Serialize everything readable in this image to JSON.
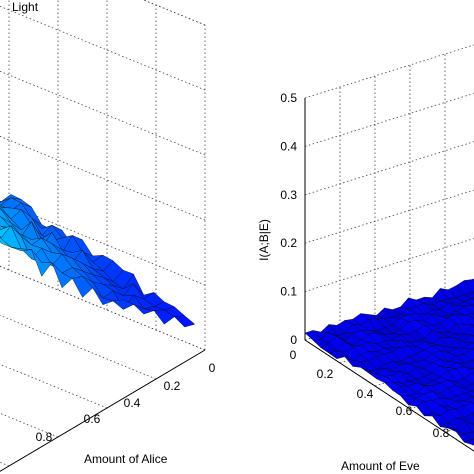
{
  "chart_data": [
    {
      "type": "surface",
      "title": "Light",
      "xlabel": "Amount of Alice",
      "x_ticks": [
        "0",
        "0.2",
        "0.4",
        "0.6",
        "0.8"
      ],
      "grid": true,
      "colormap": "jet",
      "surface": {
        "peak_at": [
          0,
          0
        ],
        "peak_value": 0.5,
        "falloff": "radial, decays toward x+y=1"
      }
    },
    {
      "type": "surface",
      "ylabel": "I(A;B|E)",
      "xlabel": "Amount of Eve",
      "z_ticks": [
        "0",
        "0.1",
        "0.2",
        "0.3",
        "0.4",
        "0.5"
      ],
      "x_ticks": [
        "0",
        "0.2",
        "0.4",
        "0.6",
        "0.8"
      ],
      "zlim": [
        0,
        0.5
      ],
      "grid": true,
      "colormap": "jet",
      "surface": {
        "peak_value": 0.02,
        "shape": "near-flat noisy floor"
      }
    }
  ]
}
